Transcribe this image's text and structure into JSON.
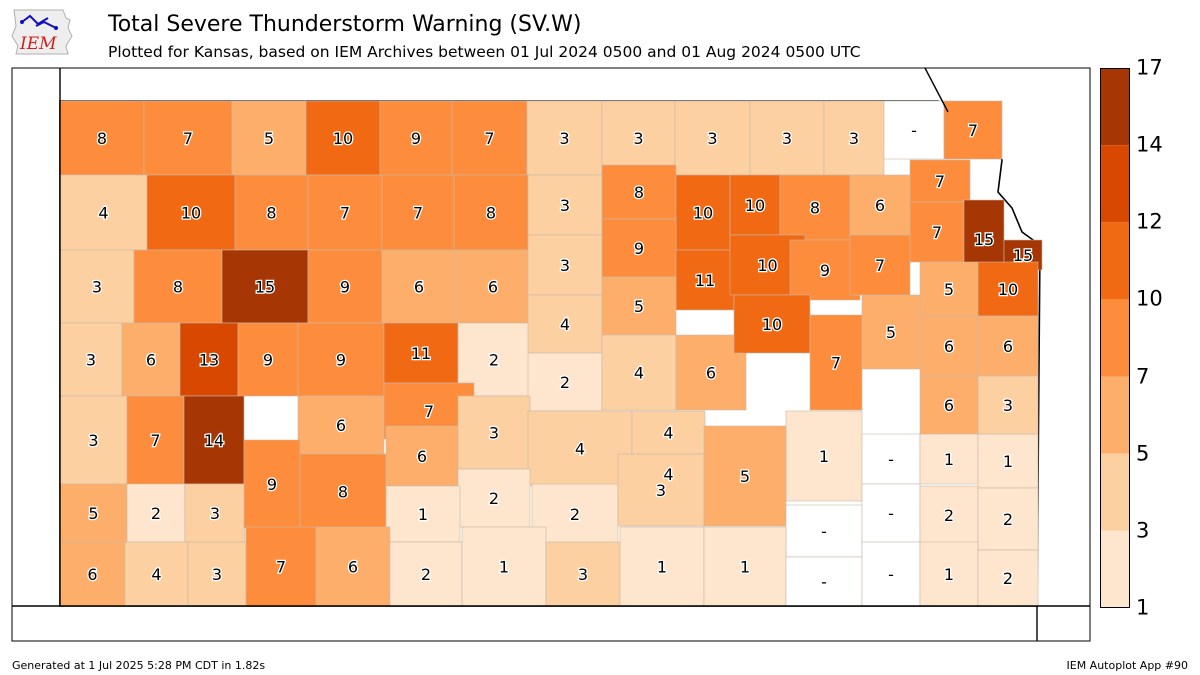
{
  "header": {
    "logo_text": "IEM",
    "title": "Total Severe Thunderstorm Warning (SV.W)",
    "subtitle": "Plotted for Kansas, based on IEM Archives  between 01 Jul 2024 0500 and 01 Aug 2024 0500 UTC"
  },
  "legend": {
    "ticks": [
      "1",
      "3",
      "5",
      "7",
      "10",
      "12",
      "14",
      "17"
    ],
    "bins": [
      {
        "min": 1,
        "max": 3,
        "color": "#fee6ce"
      },
      {
        "min": 3,
        "max": 5,
        "color": "#fdd0a2"
      },
      {
        "min": 5,
        "max": 7,
        "color": "#fdae6b"
      },
      {
        "min": 7,
        "max": 10,
        "color": "#fd8d3c"
      },
      {
        "min": 10,
        "max": 12,
        "color": "#f16913"
      },
      {
        "min": 12,
        "max": 14,
        "color": "#d94801"
      },
      {
        "min": 14,
        "max": 17,
        "color": "#a63603"
      }
    ],
    "no_data_color": "#ffffff"
  },
  "counties": [
    {
      "row": 1,
      "labels": [
        "8",
        "7",
        "5",
        "10",
        "9",
        "7",
        "3",
        "3",
        "3",
        "3",
        "3",
        "-",
        "7"
      ]
    },
    {
      "row": 2,
      "labels": [
        "4",
        "10",
        "8",
        "7",
        "7",
        "8",
        "3",
        "8",
        "10",
        "10",
        "8",
        "6",
        "7",
        "7",
        "15",
        "15"
      ]
    },
    {
      "row": 3,
      "labels": [
        "3",
        "8",
        "15",
        "9",
        "6",
        "6",
        "3",
        "9",
        "11",
        "10",
        "9",
        "7",
        "5",
        "10"
      ]
    },
    {
      "row": 4,
      "labels": [
        "3",
        "6",
        "13",
        "9",
        "9",
        "11",
        "2",
        "4",
        "5",
        "2",
        "4",
        "6",
        "10",
        "7",
        "5",
        "6",
        "6"
      ]
    },
    {
      "row": 5,
      "labels": [
        "3",
        "7",
        "14",
        "6",
        "7",
        "3",
        "4",
        "4",
        "4",
        "1",
        "-",
        "1",
        "1",
        "3",
        "6"
      ]
    },
    {
      "row": 6,
      "labels": [
        "5",
        "2",
        "3",
        "9",
        "8",
        "6",
        "2",
        "1",
        "2",
        "3",
        "5",
        "-",
        "-",
        "2",
        "2"
      ]
    },
    {
      "row": 7,
      "labels": [
        "6",
        "4",
        "3",
        "7",
        "6",
        "2",
        "1",
        "3",
        "1",
        "1",
        "-",
        "-",
        "1",
        "2"
      ]
    }
  ],
  "footer": {
    "left": "Generated at 1 Jul 2025 5:28 PM CDT in 1.82s",
    "right": "IEM Autoplot App #90"
  }
}
